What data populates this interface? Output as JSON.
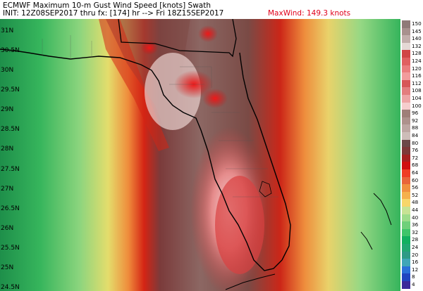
{
  "header": {
    "title": "ECMWF Maximum 10-m Gust Wind Speed [knots] Swath",
    "init": "INIT: 12Z08SEP2017 thru fx: [174] hr --> Fri 18Z15SEP2017",
    "maxwind": "MaxWind: 149.3 knots"
  },
  "lat_labels": [
    "31N",
    "30.5N",
    "30N",
    "29.5N",
    "29N",
    "28.5N",
    "28N",
    "27.5N",
    "27N",
    "26.5N",
    "26N",
    "25.5N",
    "25N",
    "24.5N"
  ],
  "legend": {
    "levels": [
      "150",
      "145",
      "140",
      "132",
      "128",
      "124",
      "120",
      "116",
      "112",
      "108",
      "104",
      "100",
      "96",
      "92",
      "88",
      "84",
      "80",
      "76",
      "72",
      "68",
      "64",
      "60",
      "56",
      "52",
      "48",
      "44",
      "40",
      "36",
      "32",
      "28",
      "24",
      "20",
      "16",
      "12",
      "8",
      "4"
    ],
    "colors": [
      "#8f7a78",
      "#a8918e",
      "#c2aeab",
      "#e5d8d5",
      "#d04545",
      "#e06060",
      "#ea7d7d",
      "#f29c9c",
      "#d75757",
      "#e37e7e",
      "#eda5a5",
      "#f5cdcd",
      "#9e7f78",
      "#ad928c",
      "#bda7a2",
      "#cdbdb8",
      "#6b4848",
      "#7d3838",
      "#a52020",
      "#d01010",
      "#ef3e24",
      "#e8653a",
      "#f0903f",
      "#f5b14c",
      "#f7d66a",
      "#c7e394",
      "#9ddc8a",
      "#6fd07a",
      "#3ec56a",
      "#12b060",
      "#22a872",
      "#2f9b86",
      "#3fa6b8",
      "#2a70d8",
      "#2045c0",
      "#3a2a9a"
    ]
  },
  "colors": {
    "max_wind_text": "#e0001a",
    "title_text": "#000000"
  }
}
